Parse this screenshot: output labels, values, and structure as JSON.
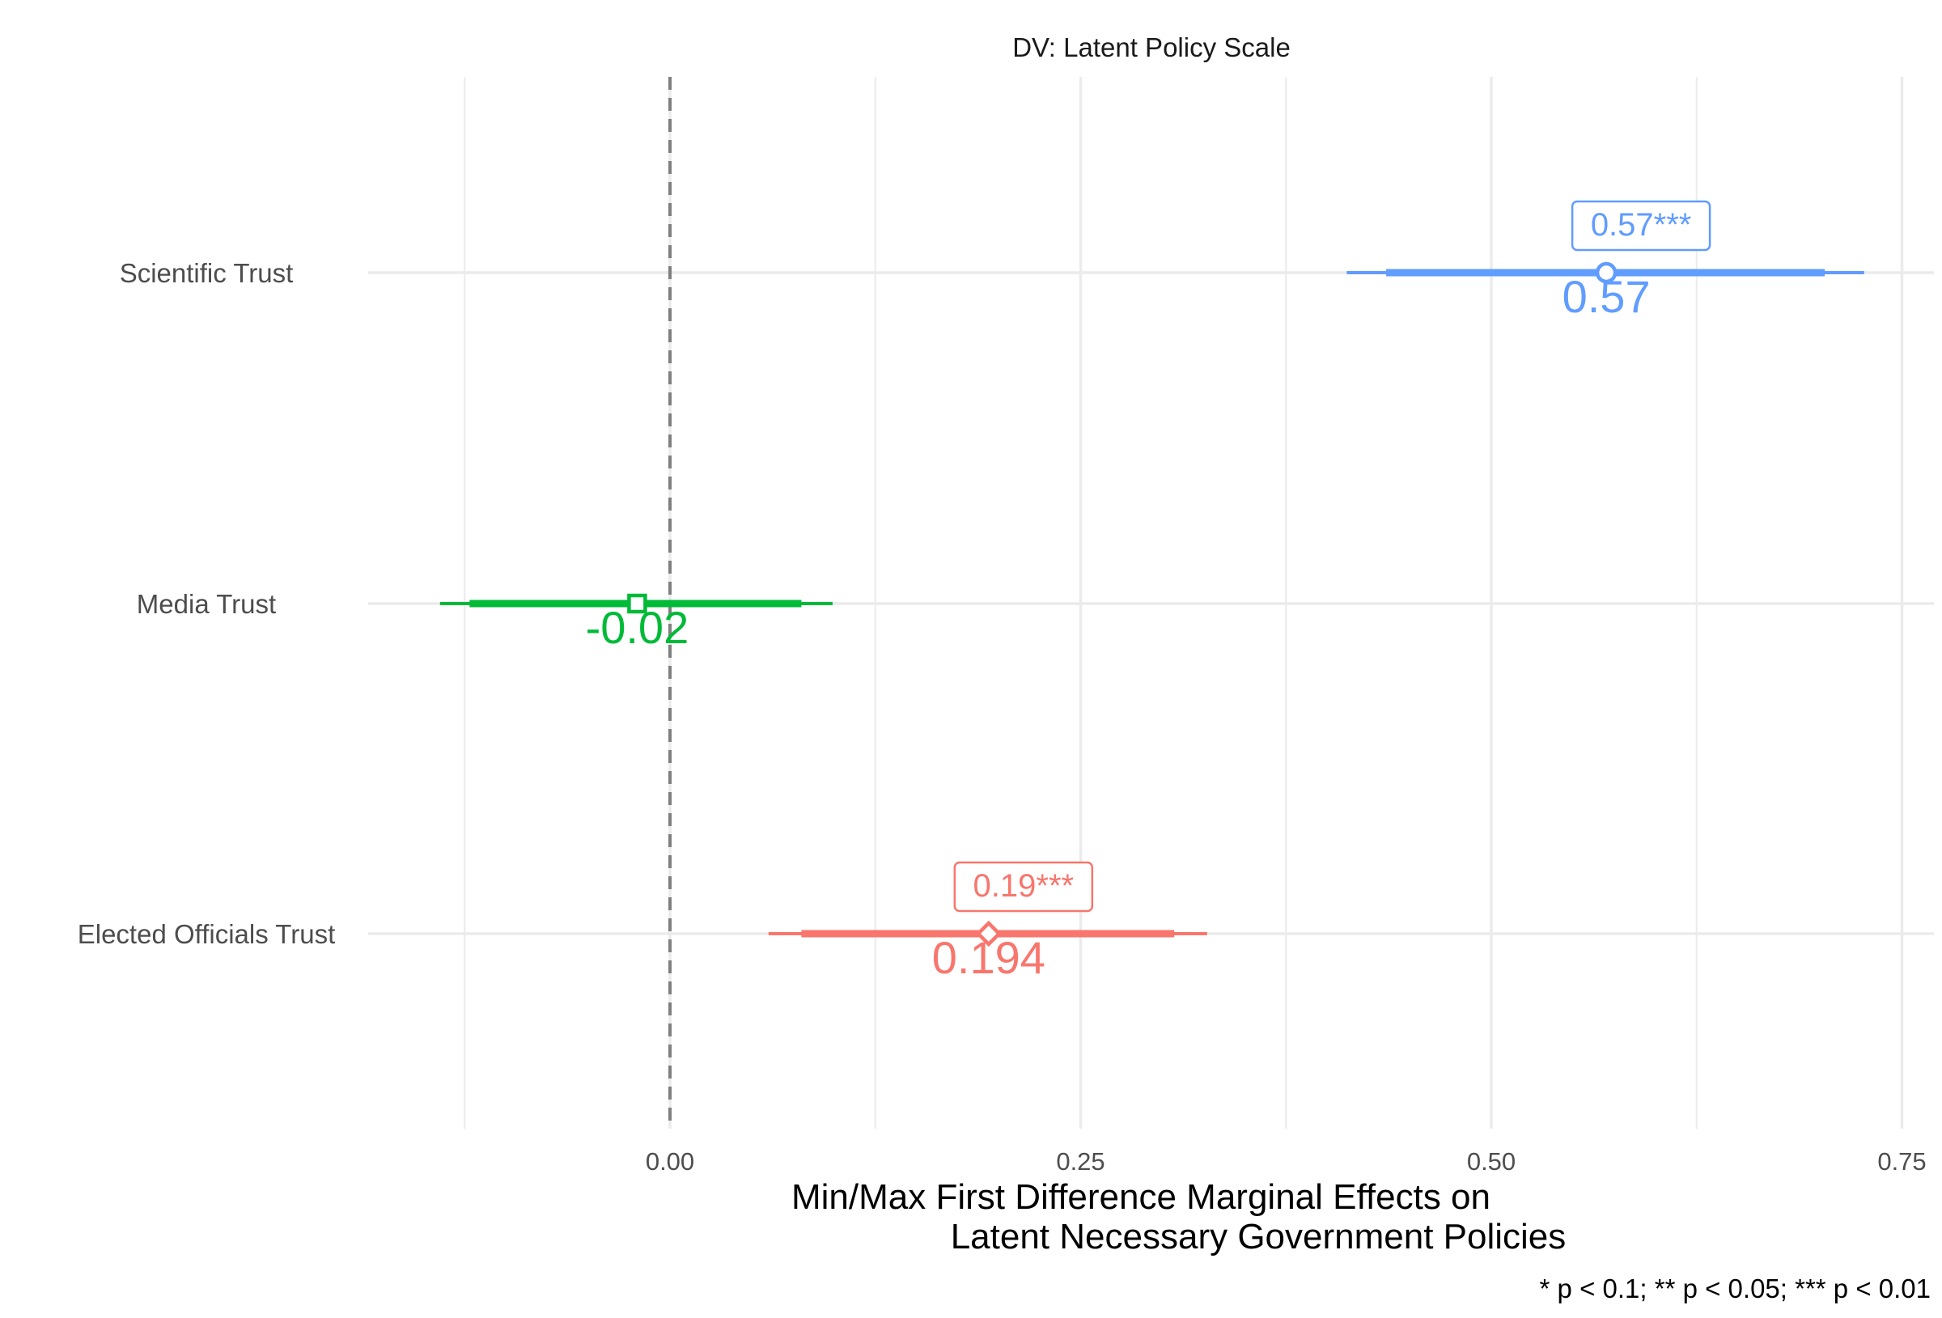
{
  "chart_data": {
    "type": "coefficient-plot",
    "title": "DV: Latent Policy Scale",
    "xlabel_line1": "Min/Max First Difference Marginal Effects on",
    "xlabel_line2": "Latent Necessary Government Policies",
    "caption": "* p < 0.1; ** p < 0.05; *** p < 0.01",
    "xlim": [
      -0.185,
      0.77
    ],
    "x_ticks": [
      0.0,
      0.25,
      0.5,
      0.75
    ],
    "x_tick_labels": [
      "0.00",
      "0.25",
      "0.50",
      "0.75"
    ],
    "x_minor_gridlines": [
      -0.125,
      0.125,
      0.375,
      0.625
    ],
    "reference_line": 0.0,
    "grid": true,
    "estimates": [
      {
        "category": "Scientific Trust",
        "estimate": 0.57,
        "ci_inner": [
          0.436,
          0.703
        ],
        "ci_outer": [
          0.412,
          0.727
        ],
        "point_label": "0.57",
        "sig_label": "0.57***",
        "color": "#619CFF",
        "marker": "circle"
      },
      {
        "category": "Media Trust",
        "estimate": -0.02,
        "ci_inner": [
          -0.122,
          0.08
        ],
        "ci_outer": [
          -0.14,
          0.099
        ],
        "point_label": "-0.02",
        "sig_label": "",
        "color": "#00BA38",
        "marker": "square"
      },
      {
        "category": "Elected Officials Trust",
        "estimate": 0.194,
        "ci_inner": [
          0.08,
          0.307
        ],
        "ci_outer": [
          0.06,
          0.327
        ],
        "point_label": "0.194",
        "sig_label": "0.19***",
        "color": "#F8766D",
        "marker": "diamond"
      }
    ]
  }
}
